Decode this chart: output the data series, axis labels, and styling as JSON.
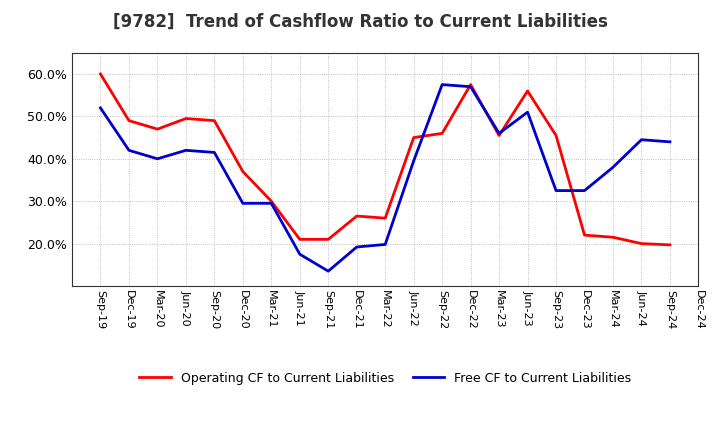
{
  "title": "[9782]  Trend of Cashflow Ratio to Current Liabilities",
  "ylim": [
    0.1,
    0.65
  ],
  "yticks": [
    0.2,
    0.3,
    0.4,
    0.5,
    0.6
  ],
  "x_labels": [
    "Sep-19",
    "Dec-19",
    "Mar-20",
    "Jun-20",
    "Sep-20",
    "Dec-20",
    "Mar-21",
    "Jun-21",
    "Sep-21",
    "Dec-21",
    "Mar-22",
    "Jun-22",
    "Sep-22",
    "Dec-22",
    "Mar-23",
    "Jun-23",
    "Sep-23",
    "Dec-23",
    "Mar-24",
    "Jun-24",
    "Sep-24",
    "Dec-24"
  ],
  "operating_cf": [
    0.6,
    0.49,
    0.47,
    0.495,
    0.49,
    0.37,
    0.3,
    0.21,
    0.21,
    0.265,
    0.26,
    0.45,
    0.46,
    0.575,
    0.455,
    0.56,
    0.455,
    0.22,
    0.215,
    0.2,
    0.197,
    null
  ],
  "free_cf": [
    0.52,
    0.42,
    0.4,
    0.42,
    0.415,
    0.295,
    0.295,
    0.175,
    0.135,
    0.192,
    0.198,
    0.395,
    0.575,
    0.57,
    0.46,
    0.51,
    0.325,
    0.325,
    0.38,
    0.445,
    0.44,
    null
  ],
  "operating_color": "#ff0000",
  "free_color": "#0000cc",
  "background_color": "#ffffff",
  "grid_color": "#999999",
  "legend_operating": "Operating CF to Current Liabilities",
  "legend_free": "Free CF to Current Liabilities",
  "line_width": 2.0,
  "title_fontsize": 12,
  "tick_fontsize": 8,
  "legend_fontsize": 9
}
